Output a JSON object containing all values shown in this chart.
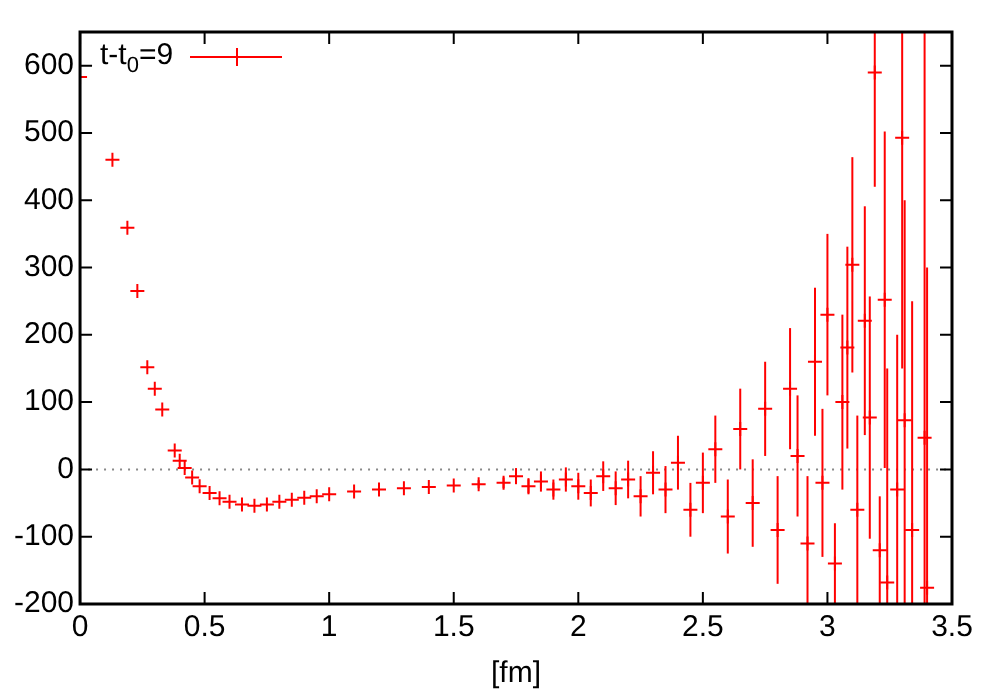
{
  "chart_data": {
    "type": "scatter",
    "xlabel": "[fm]",
    "xlim": [
      0,
      3.5
    ],
    "ylim": [
      -200,
      650
    ],
    "xticks": [
      0,
      0.5,
      1,
      1.5,
      2,
      2.5,
      3,
      3.5
    ],
    "yticks": [
      -200,
      -100,
      0,
      100,
      200,
      300,
      400,
      500,
      600
    ],
    "grid": false,
    "legend": "top left",
    "marker": "cross",
    "ref_lines": [
      {
        "axis": "y",
        "value": 0,
        "color": "#888888",
        "line_style": "dotted"
      }
    ],
    "series": [
      {
        "name": "t-t$_{0}$=9",
        "color": "#ff0000",
        "x": [
          0.0,
          0.13,
          0.19,
          0.23,
          0.27,
          0.3,
          0.33,
          0.38,
          0.4,
          0.42,
          0.45,
          0.48,
          0.52,
          0.56,
          0.6,
          0.65,
          0.7,
          0.75,
          0.8,
          0.85,
          0.9,
          0.95,
          1.0,
          1.1,
          1.2,
          1.3,
          1.4,
          1.5,
          1.6,
          1.7,
          1.75,
          1.8,
          1.85,
          1.9,
          1.95,
          2.0,
          2.05,
          2.1,
          2.15,
          2.2,
          2.25,
          2.3,
          2.35,
          2.4,
          2.45,
          2.5,
          2.55,
          2.6,
          2.65,
          2.7,
          2.75,
          2.8,
          2.85,
          2.88,
          2.92,
          2.95,
          2.98,
          3.0,
          3.03,
          3.06,
          3.08,
          3.1,
          3.12,
          3.15,
          3.17,
          3.19,
          3.21,
          3.23,
          3.24,
          3.28,
          3.3,
          3.31,
          3.34,
          3.39,
          3.4
        ],
        "values": [
          583,
          460,
          359,
          265,
          152,
          120,
          89,
          28,
          13,
          2,
          -12,
          -25,
          -35,
          -43,
          -48,
          -52,
          -54,
          -52,
          -48,
          -45,
          -42,
          -40,
          -37,
          -33,
          -30,
          -28,
          -26,
          -24,
          -22,
          -20,
          -10,
          -25,
          -18,
          -30,
          -15,
          -25,
          -35,
          -10,
          -28,
          -15,
          -40,
          -5,
          -30,
          10,
          -60,
          -20,
          30,
          -70,
          60,
          -50,
          90,
          -90,
          120,
          20,
          -110,
          160,
          -20,
          230,
          -140,
          100,
          181,
          304,
          -60,
          221,
          77,
          590,
          -120,
          252,
          -168,
          -30,
          493,
          73,
          -90,
          47,
          -176
        ],
        "errors": [
          null,
          null,
          null,
          null,
          null,
          null,
          null,
          null,
          null,
          null,
          null,
          null,
          null,
          null,
          null,
          null,
          null,
          null,
          null,
          null,
          null,
          null,
          null,
          null,
          null,
          null,
          null,
          null,
          [
            -28,
            -16
          ],
          [
            -28,
            -12
          ],
          [
            -22,
            2
          ],
          [
            -37,
            -13
          ],
          [
            -33,
            -3
          ],
          [
            -45,
            -15
          ],
          [
            -33,
            3
          ],
          [
            -45,
            -5
          ],
          [
            -55,
            -15
          ],
          [
            -32,
            12
          ],
          [
            -53,
            -3
          ],
          [
            -43,
            13
          ],
          [
            -70,
            -10
          ],
          [
            -37,
            27
          ],
          [
            -65,
            5
          ],
          [
            -30,
            50
          ],
          [
            -100,
            -20
          ],
          [
            -65,
            25
          ],
          [
            -20,
            80
          ],
          [
            -125,
            -15
          ],
          [
            0,
            120
          ],
          [
            -115,
            15
          ],
          [
            20,
            160
          ],
          [
            -170,
            -10
          ],
          [
            30,
            210
          ],
          [
            -70,
            110
          ],
          [
            -200,
            -10
          ],
          [
            50,
            270
          ],
          [
            -130,
            90
          ],
          [
            110,
            350
          ],
          [
            -200,
            -80
          ],
          [
            -30,
            230
          ],
          [
            31,
            331
          ],
          [
            144,
            464
          ],
          [
            -200,
            80
          ],
          [
            51,
            391
          ],
          [
            -103,
            257
          ],
          [
            420,
            650
          ],
          [
            -200,
            -40
          ],
          [
            2,
            502
          ],
          [
            -200,
            150
          ],
          [
            -200,
            200
          ],
          [
            150,
            650
          ],
          [
            -200,
            400
          ],
          [
            -200,
            250
          ],
          [
            -200,
            650
          ],
          [
            -200,
            300
          ]
        ]
      }
    ]
  }
}
